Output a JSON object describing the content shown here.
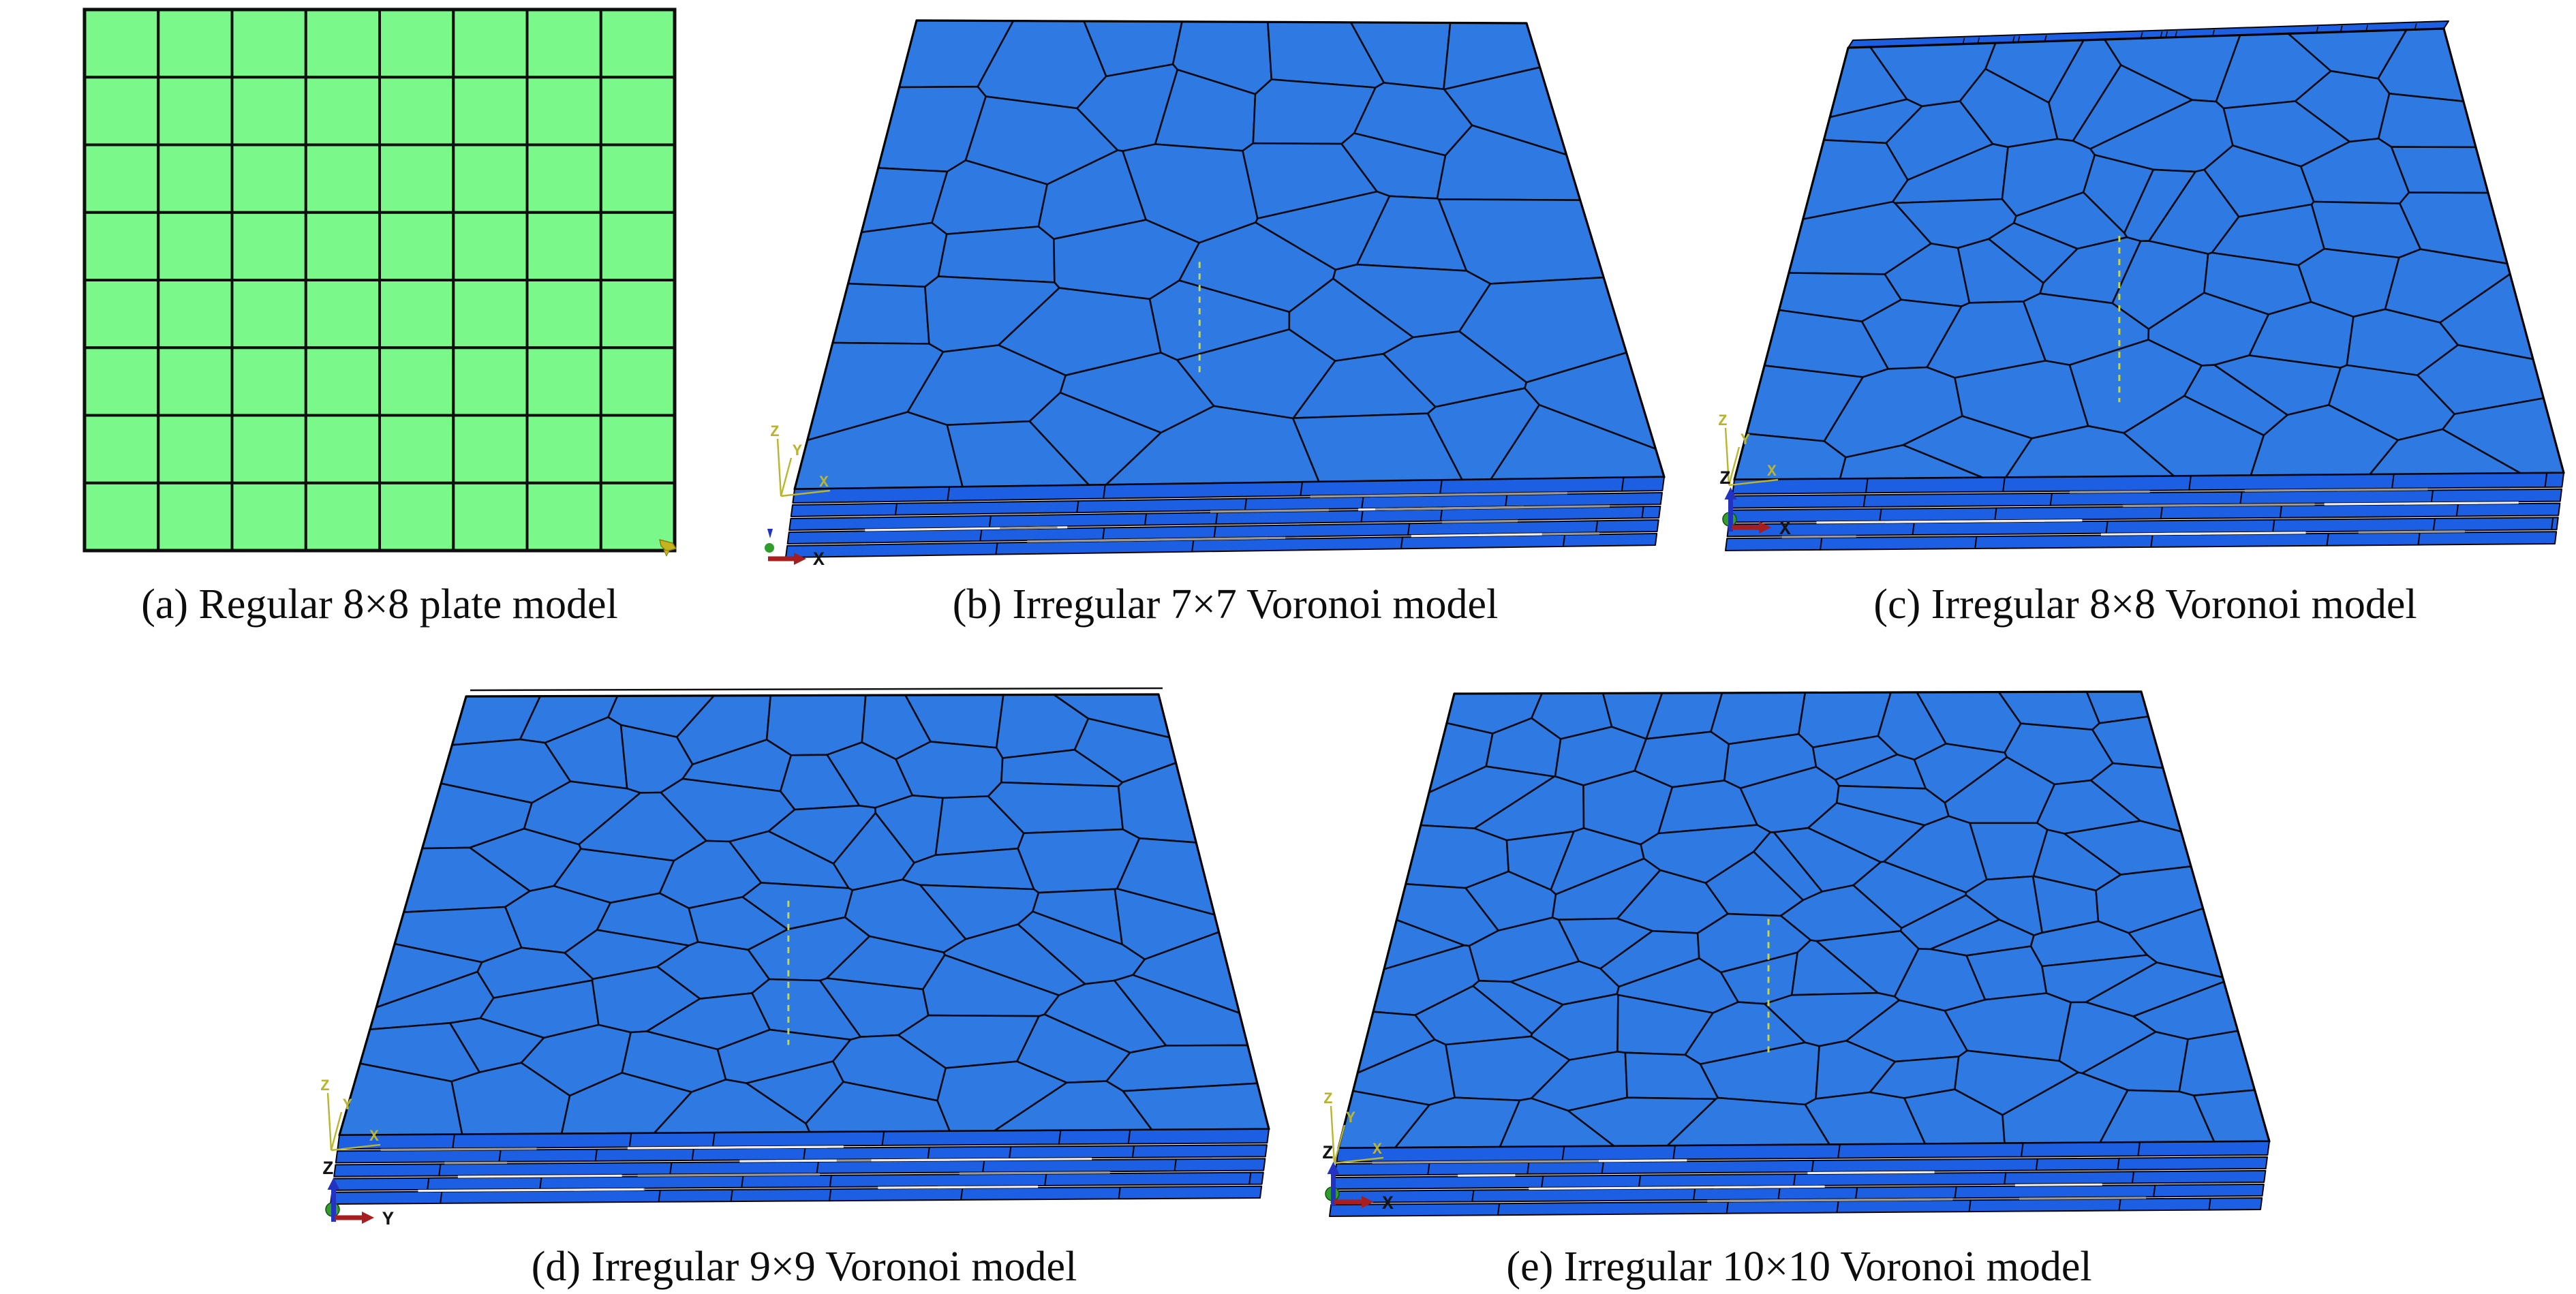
{
  "figure": {
    "background_color": "#ffffff",
    "caption_color": "#0d0d0d",
    "panels": [
      {
        "id": "a",
        "caption": "(a) Regular 8×8 plate model",
        "model_type": "regular-grid-plate",
        "mesh_grid": "8×8",
        "rows": 8,
        "cols": 8,
        "plate_color": "#7bf88a",
        "mesh_line_color": "#0e0e0e",
        "corner_marker_color": "#c6b41f"
      },
      {
        "id": "b",
        "caption": "(b) Irregular 7×7 Voronoi model",
        "model_type": "voronoi-laminate-plate",
        "mesh_grid": "7×7",
        "n": 7,
        "layers": 5,
        "top_color": "#2e79e2",
        "layer_color": "#1d5fe2",
        "mesh_line_color": "#0a0a12",
        "triad": {
          "datum_labels": [
            "Z",
            "Y",
            "X"
          ],
          "view_axis_label": "X",
          "view_z_label": ""
        }
      },
      {
        "id": "c",
        "caption": "(c) Irregular 8×8 Voronoi model",
        "model_type": "voronoi-laminate-plate",
        "mesh_grid": "8×8",
        "n": 8,
        "layers": 5,
        "top_color": "#2e79e2",
        "layer_color": "#1d5fe2",
        "mesh_line_color": "#0a0a12",
        "triad": {
          "datum_labels": [
            "Z",
            "Y",
            "X"
          ],
          "view_axis_label": "X",
          "view_z_label": "Z"
        }
      },
      {
        "id": "d",
        "caption": "(d) Irregular 9×9 Voronoi model",
        "model_type": "voronoi-laminate-plate",
        "mesh_grid": "9×9",
        "n": 9,
        "layers": 5,
        "top_color": "#2e79e2",
        "layer_color": "#1d5fe2",
        "mesh_line_color": "#0a0a12",
        "triad": {
          "datum_labels": [
            "Z",
            "Y",
            "X"
          ],
          "view_axis_label": "Y",
          "view_z_label": "Z"
        }
      },
      {
        "id": "e",
        "caption": "(e) Irregular 10×10 Voronoi model",
        "model_type": "voronoi-laminate-plate",
        "mesh_grid": "10×10",
        "n": 10,
        "layers": 5,
        "top_color": "#2e79e2",
        "layer_color": "#1d5fe2",
        "mesh_line_color": "#0a0a12",
        "triad": {
          "datum_labels": [
            "Z",
            "Y",
            "X"
          ],
          "view_axis_label": "X",
          "view_z_label": "Z"
        }
      }
    ],
    "triad_colors": {
      "datum_axis": "#b9b52e",
      "x_arrow": "#a81d1d",
      "z_arrow": "#2133c0",
      "origin_sphere": "#2f9e2b",
      "black_label": "#151515"
    },
    "center_dash_color": "#c9d63e"
  }
}
